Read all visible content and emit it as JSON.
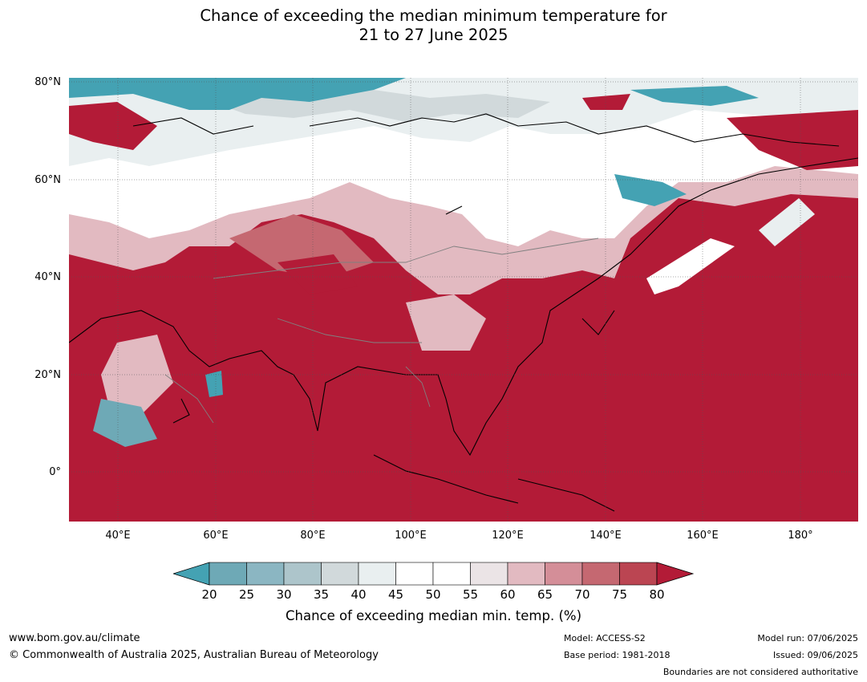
{
  "title_line1": "Chance of exceeding the median minimum temperature for",
  "title_line2": "21 to 27 June 2025",
  "lat_labels": [
    "80°N",
    "60°N",
    "40°N",
    "20°N",
    "0°"
  ],
  "lon_labels": [
    "40°E",
    "60°E",
    "80°E",
    "100°E",
    "120°E",
    "140°E",
    "160°E",
    "180°"
  ],
  "colorbar": {
    "ticks": [
      "20",
      "25",
      "30",
      "35",
      "40",
      "45",
      "50",
      "55",
      "60",
      "65",
      "70",
      "75",
      "80"
    ],
    "colors": [
      "#44a2b3",
      "#6ea9b6",
      "#8bb6c2",
      "#adc5cb",
      "#d1d9db",
      "#e9eff0",
      "#ffffff",
      "#ffffff",
      "#ebe4e6",
      "#e2bac1",
      "#d48e98",
      "#c56871",
      "#bb4552",
      "#b31b37"
    ],
    "label": "Chance of exceeding median min. temp. (%)"
  },
  "footer": {
    "website": "www.bom.gov.au/climate",
    "copyright": "© Commonwealth of Australia 2025, Australian Bureau of Meteorology",
    "model": "Model: ACCESS-S2",
    "base_period": "Base period: 1981-2018",
    "model_run": "Model run: 07/06/2025",
    "issued": "Issued: 09/06/2025",
    "disclaimer": "Boundaries are not considered authoritative"
  }
}
